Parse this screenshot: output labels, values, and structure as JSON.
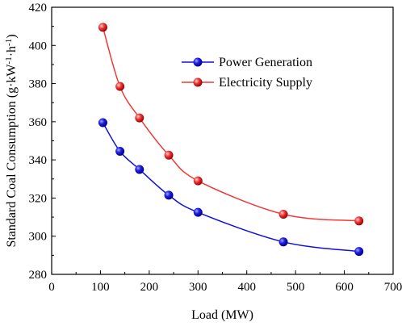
{
  "chart_data": {
    "type": "line",
    "xlabel": "Load (MW)",
    "ylabel": {
      "prefix": "Standard Coal Consumption (g·kW",
      "sup1": "-1",
      "mid": "·h",
      "sup2": "-1",
      "suffix": ")"
    },
    "xlim": [
      0,
      700
    ],
    "ylim": [
      280,
      420
    ],
    "xticks": [
      0,
      100,
      200,
      300,
      400,
      500,
      600,
      700
    ],
    "yticks": [
      280,
      300,
      320,
      340,
      360,
      380,
      400,
      420
    ],
    "grid": false,
    "legend_position": "upper-right",
    "series": [
      {
        "name": "Power Generation",
        "color": "#1010dd",
        "x": [
          105,
          140,
          180,
          240,
          300,
          475,
          630
        ],
        "y": [
          359.5,
          344.5,
          335,
          321.5,
          312.5,
          297,
          292
        ]
      },
      {
        "name": "Electricity Supply",
        "color": "#ee3a3a",
        "x": [
          105,
          140,
          180,
          240,
          300,
          475,
          630
        ],
        "y": [
          409.5,
          378.5,
          362,
          342.5,
          329,
          311.5,
          308
        ]
      }
    ]
  }
}
